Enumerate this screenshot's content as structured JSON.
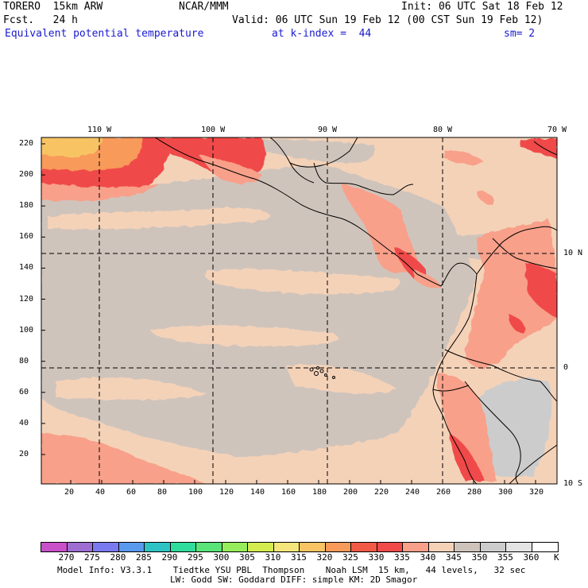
{
  "header": {
    "model": "TORERO  15km ARW",
    "center": "NCAR/MMM",
    "init": "Init: 06 UTC Sat 18 Feb 12",
    "fcst": "Fcst.   24 h",
    "valid": "Valid: 06 UTC Sun 19 Feb 12 (00 CST Sun 19 Feb 12)",
    "field": "Equivalent potential temperature",
    "level": "at k-index =  44",
    "smooth": "sm= 2"
  },
  "map": {
    "top_lon_labels": [
      "110 W",
      "100 W",
      "90 W",
      "80 W",
      "70 W"
    ],
    "right_lat_labels": [
      "10 N",
      "0",
      "10 S"
    ],
    "y_ticks": [
      "220",
      "200",
      "180",
      "160",
      "140",
      "120",
      "100",
      "80",
      "60",
      "40",
      "20"
    ],
    "x_ticks": [
      "20",
      "40",
      "60",
      "80",
      "100",
      "120",
      "140",
      "160",
      "180",
      "200",
      "220",
      "240",
      "260",
      "280",
      "300",
      "320"
    ]
  },
  "legend": {
    "unit": "K",
    "labels": [
      "270",
      "275",
      "280",
      "285",
      "290",
      "295",
      "300",
      "305",
      "310",
      "315",
      "320",
      "325",
      "330",
      "335",
      "340",
      "345",
      "350",
      "355",
      "360"
    ],
    "colors": [
      "#c850c8",
      "#9e6ed2",
      "#7a7af0",
      "#5a9aee",
      "#2ec4c4",
      "#2edc9c",
      "#58e478",
      "#96ec5a",
      "#d4ec50",
      "#f4e67a",
      "#f8c464",
      "#f89a5a",
      "#f05a46",
      "#f04a4a",
      "#f8a08a",
      "#f4d2b8",
      "#cfc4bc",
      "#cccccc",
      "#e4e4e4",
      "#ffffff"
    ]
  },
  "footer": {
    "line1": "Model Info: V3.3.1    Tiedtke YSU PBL  Thompson    Noah LSM  15 km,   44 levels,   32 sec",
    "line2": "LW: Godd SW: Goddard DIFF: simple KM: 2D Smagor"
  }
}
